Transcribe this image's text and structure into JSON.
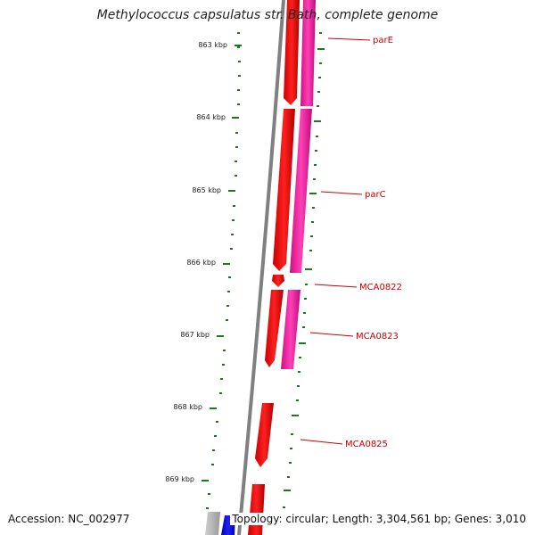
{
  "title": "Methylococcus capsulatus str. Bath, complete genome",
  "footer": {
    "accession": "Accession: NC_002977",
    "topology": "Topology: circular; Length: 3,304,561 bp; Genes: 3,010"
  },
  "colors": {
    "backbone": "#808080",
    "gene_forward": "#ff0000",
    "gene_reverse": "#ff2aa8",
    "tick": "#1a7a1a",
    "label": "#cc0000",
    "other_gene": "#0000ee"
  },
  "ticks": [
    {
      "label": "863 kbp"
    },
    {
      "label": "864 kbp"
    },
    {
      "label": "865 kbp"
    },
    {
      "label": "866 kbp"
    },
    {
      "label": "867 kbp"
    },
    {
      "label": "868 kbp"
    },
    {
      "label": "869 kbp"
    }
  ],
  "genes": [
    {
      "name": "parE"
    },
    {
      "name": "parC"
    },
    {
      "name": "MCA0822"
    },
    {
      "name": "MCA0823"
    },
    {
      "name": "MCA0825"
    }
  ]
}
